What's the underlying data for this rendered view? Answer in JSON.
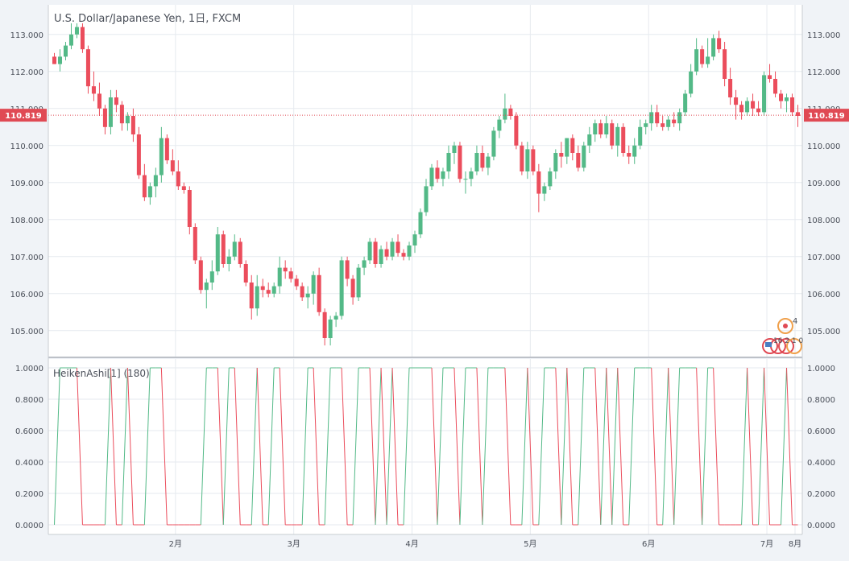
{
  "header": {
    "title": "U.S. Dollar/Japanese Yen, 1日, FXCM"
  },
  "indicator": {
    "label": "HeikenAshi[1] (180)"
  },
  "price_tag": {
    "value": "110.819",
    "color": "#e04a54"
  },
  "markers": {
    "count_label": "4",
    "event_label": "16 2 1 0"
  },
  "colors": {
    "up": "#53b987",
    "down": "#eb4d5c",
    "grid": "#e6eaef"
  },
  "chart_data": [
    {
      "type": "candlestick",
      "title": "U.S. Dollar/Japanese Yen, 1日, FXCM",
      "xlabel": "",
      "ylabel": "",
      "x_ticks": [
        "2月",
        "3月",
        "4月",
        "5月",
        "6月",
        "7月",
        "8月"
      ],
      "y_ticks": [
        "105.000",
        "106.000",
        "107.000",
        "108.000",
        "109.000",
        "110.000",
        "111.000",
        "112.000",
        "113.000"
      ],
      "ylim": [
        104.3,
        113.8
      ],
      "last_price": 110.819,
      "grid": true,
      "candles": [
        [
          112.4,
          112.5,
          112.2,
          112.2
        ],
        [
          112.2,
          112.6,
          112.0,
          112.4
        ],
        [
          112.4,
          112.8,
          112.3,
          112.7
        ],
        [
          112.7,
          113.3,
          112.6,
          113.0
        ],
        [
          113.0,
          113.3,
          112.9,
          113.2
        ],
        [
          113.2,
          113.3,
          112.5,
          112.6
        ],
        [
          112.6,
          112.7,
          111.4,
          111.6
        ],
        [
          111.6,
          112.0,
          111.2,
          111.4
        ],
        [
          111.4,
          111.7,
          110.8,
          111.0
        ],
        [
          111.0,
          111.1,
          110.3,
          110.5
        ],
        [
          110.5,
          111.5,
          110.3,
          111.3
        ],
        [
          111.3,
          111.5,
          110.9,
          111.1
        ],
        [
          111.1,
          111.2,
          110.4,
          110.6
        ],
        [
          110.6,
          110.9,
          110.4,
          110.8
        ],
        [
          110.8,
          111.0,
          110.1,
          110.3
        ],
        [
          110.3,
          110.5,
          109.1,
          109.2
        ],
        [
          109.2,
          109.5,
          108.5,
          108.6
        ],
        [
          108.6,
          109.0,
          108.4,
          108.9
        ],
        [
          108.9,
          109.4,
          108.6,
          109.2
        ],
        [
          109.2,
          110.5,
          109.0,
          110.2
        ],
        [
          110.2,
          110.3,
          109.5,
          109.6
        ],
        [
          109.6,
          109.9,
          109.2,
          109.3
        ],
        [
          109.3,
          109.6,
          108.8,
          108.9
        ],
        [
          108.9,
          109.0,
          108.7,
          108.8
        ],
        [
          108.8,
          108.9,
          107.6,
          107.8
        ],
        [
          107.8,
          107.9,
          106.8,
          106.9
        ],
        [
          106.9,
          107.0,
          106.0,
          106.1
        ],
        [
          106.1,
          106.4,
          105.6,
          106.3
        ],
        [
          106.3,
          106.9,
          106.1,
          106.6
        ],
        [
          106.6,
          107.8,
          106.5,
          107.6
        ],
        [
          107.6,
          107.7,
          106.7,
          106.8
        ],
        [
          106.8,
          107.2,
          106.6,
          107.0
        ],
        [
          107.0,
          107.6,
          106.9,
          107.4
        ],
        [
          107.4,
          107.5,
          106.7,
          106.8
        ],
        [
          106.8,
          106.9,
          106.2,
          106.3
        ],
        [
          106.3,
          106.5,
          105.3,
          105.6
        ],
        [
          105.6,
          106.5,
          105.4,
          106.2
        ],
        [
          106.2,
          106.4,
          105.9,
          106.1
        ],
        [
          106.1,
          106.3,
          105.9,
          106.0
        ],
        [
          106.0,
          106.3,
          105.9,
          106.2
        ],
        [
          106.2,
          107.0,
          106.0,
          106.7
        ],
        [
          106.7,
          106.9,
          106.4,
          106.6
        ],
        [
          106.6,
          106.7,
          106.3,
          106.4
        ],
        [
          106.4,
          106.5,
          106.1,
          106.2
        ],
        [
          106.2,
          106.3,
          105.8,
          105.9
        ],
        [
          105.9,
          106.2,
          105.6,
          106.0
        ],
        [
          106.0,
          106.6,
          105.7,
          106.5
        ],
        [
          106.5,
          106.7,
          105.4,
          105.5
        ],
        [
          105.5,
          105.6,
          104.6,
          104.8
        ],
        [
          104.8,
          105.4,
          104.6,
          105.3
        ],
        [
          105.3,
          105.5,
          105.1,
          105.4
        ],
        [
          105.4,
          107.0,
          105.3,
          106.9
        ],
        [
          106.9,
          107.0,
          106.2,
          106.4
        ],
        [
          106.4,
          106.5,
          105.7,
          105.9
        ],
        [
          105.9,
          106.8,
          105.8,
          106.7
        ],
        [
          106.7,
          107.0,
          106.5,
          106.9
        ],
        [
          106.9,
          107.5,
          106.8,
          107.4
        ],
        [
          107.4,
          107.5,
          106.7,
          106.8
        ],
        [
          106.8,
          107.3,
          106.7,
          107.2
        ],
        [
          107.2,
          107.4,
          106.9,
          107.0
        ],
        [
          107.0,
          107.5,
          106.9,
          107.4
        ],
        [
          107.4,
          107.6,
          107.0,
          107.1
        ],
        [
          107.1,
          107.2,
          106.9,
          107.0
        ],
        [
          107.0,
          107.4,
          106.9,
          107.3
        ],
        [
          107.3,
          107.7,
          107.1,
          107.6
        ],
        [
          107.6,
          108.3,
          107.5,
          108.2
        ],
        [
          108.2,
          109.1,
          108.1,
          108.9
        ],
        [
          108.9,
          109.5,
          108.8,
          109.4
        ],
        [
          109.4,
          109.6,
          109.0,
          109.1
        ],
        [
          109.1,
          109.4,
          108.9,
          109.3
        ],
        [
          109.3,
          110.0,
          109.1,
          109.8
        ],
        [
          109.8,
          110.1,
          109.5,
          110.0
        ],
        [
          110.0,
          110.1,
          109.0,
          109.1
        ],
        [
          109.1,
          109.3,
          108.7,
          109.1
        ],
        [
          109.1,
          109.4,
          108.9,
          109.3
        ],
        [
          109.3,
          110.0,
          109.2,
          109.8
        ],
        [
          109.8,
          110.0,
          109.3,
          109.4
        ],
        [
          109.4,
          109.8,
          109.2,
          109.7
        ],
        [
          109.7,
          110.5,
          109.6,
          110.4
        ],
        [
          110.4,
          110.8,
          110.2,
          110.7
        ],
        [
          110.7,
          111.4,
          110.6,
          111.0
        ],
        [
          111.0,
          111.1,
          110.7,
          110.8
        ],
        [
          110.8,
          110.9,
          109.9,
          110.0
        ],
        [
          110.0,
          110.1,
          109.2,
          109.3
        ],
        [
          109.3,
          110.1,
          109.1,
          109.9
        ],
        [
          109.9,
          110.0,
          109.2,
          109.3
        ],
        [
          109.3,
          109.5,
          108.2,
          108.7
        ],
        [
          108.7,
          109.0,
          108.5,
          108.9
        ],
        [
          108.9,
          109.4,
          108.8,
          109.3
        ],
        [
          109.3,
          109.9,
          109.1,
          109.8
        ],
        [
          109.8,
          110.1,
          109.4,
          109.7
        ],
        [
          109.7,
          110.2,
          109.5,
          110.2
        ],
        [
          110.2,
          110.3,
          109.6,
          109.8
        ],
        [
          109.8,
          110.0,
          109.3,
          109.4
        ],
        [
          109.4,
          110.1,
          109.3,
          110.0
        ],
        [
          110.0,
          110.5,
          109.8,
          110.3
        ],
        [
          110.3,
          110.7,
          110.1,
          110.6
        ],
        [
          110.6,
          110.7,
          110.2,
          110.3
        ],
        [
          110.3,
          110.8,
          110.2,
          110.6
        ],
        [
          110.6,
          110.7,
          109.9,
          110.0
        ],
        [
          110.0,
          110.6,
          109.7,
          110.5
        ],
        [
          110.5,
          110.6,
          109.7,
          109.8
        ],
        [
          109.8,
          110.0,
          109.5,
          109.7
        ],
        [
          109.7,
          110.2,
          109.5,
          110.0
        ],
        [
          110.0,
          110.7,
          109.9,
          110.5
        ],
        [
          110.5,
          110.7,
          110.3,
          110.6
        ],
        [
          110.6,
          111.1,
          110.4,
          110.9
        ],
        [
          110.9,
          111.1,
          110.5,
          110.6
        ],
        [
          110.6,
          110.8,
          110.4,
          110.5
        ],
        [
          110.5,
          110.8,
          110.4,
          110.7
        ],
        [
          110.7,
          110.9,
          110.5,
          110.6
        ],
        [
          110.6,
          111.0,
          110.4,
          110.9
        ],
        [
          110.9,
          111.5,
          110.8,
          111.4
        ],
        [
          111.4,
          112.2,
          111.3,
          112.0
        ],
        [
          112.0,
          112.9,
          111.9,
          112.6
        ],
        [
          112.6,
          112.7,
          112.1,
          112.2
        ],
        [
          112.2,
          112.9,
          112.1,
          112.4
        ],
        [
          112.4,
          113.0,
          112.3,
          112.9
        ],
        [
          112.9,
          113.1,
          112.5,
          112.6
        ],
        [
          112.6,
          112.8,
          111.6,
          111.8
        ],
        [
          111.8,
          112.1,
          111.1,
          111.3
        ],
        [
          111.3,
          111.5,
          110.7,
          111.1
        ],
        [
          111.1,
          111.2,
          110.7,
          110.9
        ],
        [
          110.9,
          111.3,
          110.8,
          111.2
        ],
        [
          111.2,
          111.4,
          110.8,
          111.0
        ],
        [
          111.0,
          111.2,
          110.8,
          110.9
        ],
        [
          110.9,
          112.0,
          110.8,
          111.9
        ],
        [
          111.9,
          112.2,
          111.7,
          111.8
        ],
        [
          111.8,
          112.0,
          111.3,
          111.4
        ],
        [
          111.4,
          111.5,
          111.0,
          111.2
        ],
        [
          111.2,
          111.4,
          110.9,
          111.3
        ],
        [
          111.3,
          111.4,
          110.8,
          110.9
        ],
        [
          110.9,
          111.1,
          110.5,
          110.8
        ]
      ],
      "indicator": {
        "name": "HeikenAshi[1] (180)",
        "ylim": [
          0,
          1
        ],
        "y_ticks": [
          "0.0000",
          "0.2000",
          "0.4000",
          "0.6000",
          "0.8000",
          "1.0000"
        ]
      }
    }
  ]
}
